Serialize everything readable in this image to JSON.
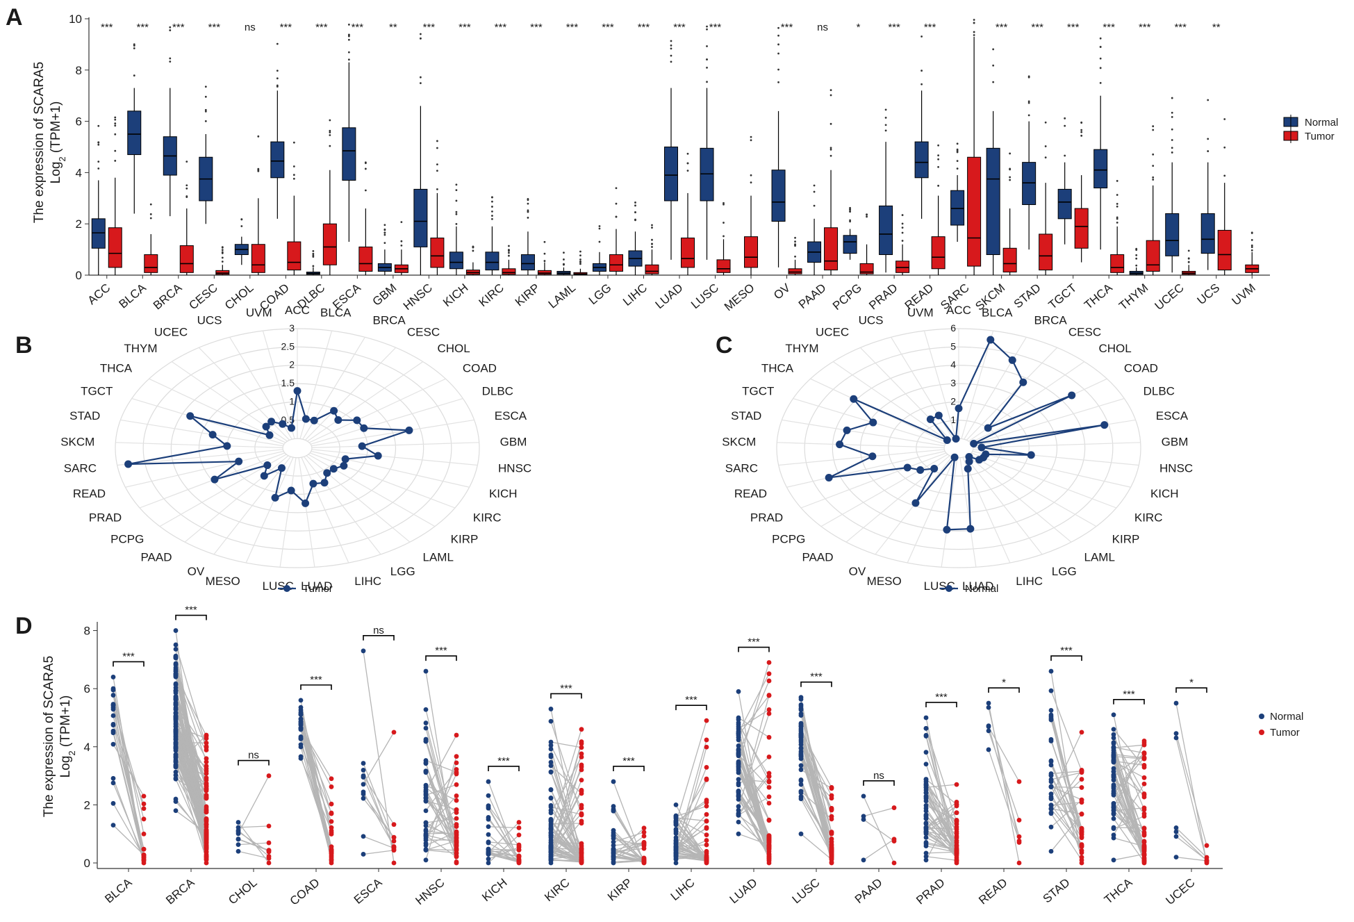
{
  "panel_labels": {
    "a": "A",
    "b": "B",
    "c": "C",
    "d": "D"
  },
  "colors": {
    "normal": "#1c3f7a",
    "tumor": "#d7191c",
    "pair_line": "#b5b5b5",
    "axis": "#333333"
  },
  "chart_data": [
    {
      "type": "box",
      "panel": "A",
      "ylabel_line1": "The expression of SCARA5",
      "ylabel_line2_base": "Log",
      "ylabel_line2_sub": "2",
      "ylabel_line2_rest": " (TPM+1)",
      "ylim": [
        0,
        10
      ],
      "yticks": [
        0,
        2,
        4,
        6,
        8,
        10
      ],
      "legend": {
        "position": "right",
        "items": [
          "Normal",
          "Tumor"
        ]
      },
      "groups": [
        {
          "cat": "ACC",
          "sig": "***",
          "normal": [
            0,
            1.05,
            1.65,
            2.2,
            3.7
          ],
          "tumor": [
            0,
            0.3,
            0.85,
            1.85,
            3.8
          ]
        },
        {
          "cat": "BLCA",
          "sig": "***",
          "normal": [
            2.4,
            4.7,
            5.5,
            6.4,
            7.3
          ],
          "tumor": [
            0,
            0.1,
            0.3,
            0.8,
            1.6
          ]
        },
        {
          "cat": "BRCA",
          "sig": "***",
          "normal": [
            2.3,
            3.9,
            4.65,
            5.4,
            7.3
          ],
          "tumor": [
            0,
            0.1,
            0.45,
            1.15,
            2.6
          ]
        },
        {
          "cat": "CESC",
          "sig": "***",
          "normal": [
            2.0,
            2.9,
            3.75,
            4.6,
            5.5
          ],
          "tumor": [
            0,
            0.03,
            0.08,
            0.18,
            0.4
          ]
        },
        {
          "cat": "CHOL",
          "sig": "ns",
          "normal": [
            0.4,
            0.8,
            1.0,
            1.2,
            1.5
          ],
          "tumor": [
            0,
            0.1,
            0.4,
            1.2,
            3.0
          ]
        },
        {
          "cat": "COAD",
          "sig": "***",
          "normal": [
            2.2,
            3.8,
            4.45,
            5.2,
            7.2
          ],
          "tumor": [
            0,
            0.2,
            0.5,
            1.3,
            3.1
          ]
        },
        {
          "cat": "DLBC",
          "sig": "***",
          "normal": [
            0,
            0.03,
            0.07,
            0.12,
            0.3
          ],
          "tumor": [
            0,
            0.4,
            1.1,
            2.0,
            4.1
          ]
        },
        {
          "cat": "ESCA",
          "sig": "***",
          "normal": [
            1.3,
            3.7,
            4.85,
            5.75,
            8.3
          ],
          "tumor": [
            0,
            0.15,
            0.45,
            1.1,
            2.6
          ]
        },
        {
          "cat": "GBM",
          "sig": "**",
          "normal": [
            0,
            0.15,
            0.3,
            0.45,
            1.0
          ],
          "tumor": [
            0,
            0.1,
            0.25,
            0.4,
            1.0
          ]
        },
        {
          "cat": "HNSC",
          "sig": "***",
          "normal": [
            0,
            1.1,
            2.1,
            3.35,
            6.6
          ],
          "tumor": [
            0,
            0.3,
            0.75,
            1.45,
            3.2
          ]
        },
        {
          "cat": "KICH",
          "sig": "***",
          "normal": [
            0,
            0.25,
            0.5,
            0.9,
            1.9
          ],
          "tumor": [
            0,
            0.03,
            0.1,
            0.2,
            0.5
          ]
        },
        {
          "cat": "KIRC",
          "sig": "***",
          "normal": [
            0,
            0.2,
            0.5,
            0.9,
            1.9
          ],
          "tumor": [
            0,
            0.03,
            0.1,
            0.25,
            0.6
          ]
        },
        {
          "cat": "KIRP",
          "sig": "***",
          "normal": [
            0,
            0.2,
            0.45,
            0.8,
            1.7
          ],
          "tumor": [
            0,
            0.03,
            0.08,
            0.18,
            0.5
          ]
        },
        {
          "cat": "LAML",
          "sig": "***",
          "normal": [
            0,
            0.03,
            0.08,
            0.15,
            0.3
          ],
          "tumor": [
            0,
            0.02,
            0.05,
            0.1,
            0.25
          ]
        },
        {
          "cat": "LGG",
          "sig": "***",
          "normal": [
            0,
            0.15,
            0.3,
            0.45,
            0.9
          ],
          "tumor": [
            0,
            0.15,
            0.4,
            0.8,
            1.8
          ]
        },
        {
          "cat": "LIHC",
          "sig": "***",
          "normal": [
            0,
            0.35,
            0.65,
            0.95,
            1.7
          ],
          "tumor": [
            0,
            0.05,
            0.15,
            0.4,
            1.0
          ]
        },
        {
          "cat": "LUAD",
          "sig": "***",
          "normal": [
            0.6,
            2.9,
            3.9,
            5.0,
            7.3
          ],
          "tumor": [
            0,
            0.3,
            0.65,
            1.45,
            3.2
          ]
        },
        {
          "cat": "LUSC",
          "sig": "***",
          "normal": [
            0.6,
            2.9,
            3.95,
            4.95,
            7.3
          ],
          "tumor": [
            0,
            0.1,
            0.25,
            0.6,
            1.4
          ]
        },
        {
          "cat": "MESO",
          "sig": "",
          "normal": null,
          "tumor": [
            0,
            0.3,
            0.7,
            1.5,
            3.1
          ]
        },
        {
          "cat": "OV",
          "sig": "***",
          "normal": [
            0.3,
            2.1,
            2.85,
            4.1,
            6.4
          ],
          "tumor": [
            0,
            0.05,
            0.12,
            0.25,
            0.6
          ]
        },
        {
          "cat": "PAAD",
          "sig": "ns",
          "normal": [
            0,
            0.5,
            0.9,
            1.3,
            2.2
          ],
          "tumor": [
            0,
            0.2,
            0.55,
            1.85,
            4.1
          ]
        },
        {
          "cat": "PCPG",
          "sig": "*",
          "normal": [
            0.6,
            0.85,
            1.3,
            1.55,
            1.8
          ],
          "tumor": [
            0,
            0.05,
            0.12,
            0.45,
            1.2
          ]
        },
        {
          "cat": "PRAD",
          "sig": "***",
          "normal": [
            0.1,
            0.8,
            1.6,
            2.7,
            5.2
          ],
          "tumor": [
            0,
            0.1,
            0.3,
            0.55,
            1.2
          ]
        },
        {
          "cat": "READ",
          "sig": "***",
          "normal": [
            2.2,
            3.8,
            4.4,
            5.2,
            7.2
          ],
          "tumor": [
            0,
            0.25,
            0.7,
            1.5,
            3.1
          ]
        },
        {
          "cat": "SARC",
          "sig": "",
          "normal": [
            1.3,
            1.95,
            2.6,
            3.3,
            3.9
          ],
          "tumor": [
            0,
            0.35,
            1.45,
            4.6,
            9.3
          ]
        },
        {
          "cat": "SKCM",
          "sig": "***",
          "normal": [
            0,
            0.8,
            3.75,
            4.95,
            6.4
          ],
          "tumor": [
            0,
            0.12,
            0.45,
            1.05,
            2.6
          ]
        },
        {
          "cat": "STAD",
          "sig": "***",
          "normal": [
            1.0,
            2.75,
            3.6,
            4.4,
            6.0
          ],
          "tumor": [
            0,
            0.2,
            0.75,
            1.6,
            3.6
          ]
        },
        {
          "cat": "TGCT",
          "sig": "***",
          "normal": [
            1.2,
            2.2,
            2.85,
            3.35,
            4.4
          ],
          "tumor": [
            0.5,
            1.05,
            1.9,
            2.6,
            3.9
          ]
        },
        {
          "cat": "THCA",
          "sig": "***",
          "normal": [
            1.0,
            3.4,
            4.1,
            4.9,
            7.0
          ],
          "tumor": [
            0,
            0.1,
            0.3,
            0.8,
            1.9
          ]
        },
        {
          "cat": "THYM",
          "sig": "***",
          "normal": [
            0,
            0.03,
            0.08,
            0.15,
            0.3
          ],
          "tumor": [
            0,
            0.15,
            0.4,
            1.35,
            3.5
          ]
        },
        {
          "cat": "UCEC",
          "sig": "***",
          "normal": [
            0.1,
            0.75,
            1.35,
            2.4,
            4.4
          ],
          "tumor": [
            0,
            0.03,
            0.08,
            0.15,
            0.4
          ]
        },
        {
          "cat": "UCS",
          "sig": "**",
          "normal": [
            0.2,
            0.85,
            1.4,
            2.4,
            4.4
          ],
          "tumor": [
            0,
            0.2,
            0.8,
            1.75,
            3.6
          ]
        },
        {
          "cat": "UVM",
          "sig": "",
          "normal": null,
          "tumor": [
            0,
            0.1,
            0.25,
            0.4,
            0.9
          ]
        }
      ]
    },
    {
      "type": "radar",
      "panel": "B",
      "series_name": "Tumor",
      "rmax": 3,
      "ticks": [
        "0.5",
        "1",
        "1.5",
        "2",
        "2.5",
        "3"
      ],
      "categories": [
        "ACC",
        "BLCA",
        "BRCA",
        "CESC",
        "CHOL",
        "COAD",
        "DLBC",
        "ESCA",
        "GBM",
        "HNSC",
        "KICH",
        "KIRC",
        "KIRP",
        "LAML",
        "LGG",
        "LIHC",
        "LUAD",
        "LUSC",
        "MESO",
        "OV",
        "PAAD",
        "PCPG",
        "PRAD",
        "READ",
        "SARC",
        "SKCM",
        "STAD",
        "TGCT",
        "THCA",
        "THYM",
        "UCEC",
        "UCS",
        "UVM"
      ],
      "values": [
        1.3,
        0.55,
        0.55,
        0.95,
        0.8,
        1.05,
        1.05,
        1.8,
        0.9,
        1.2,
        0.65,
        0.7,
        0.6,
        0.6,
        0.8,
        0.75,
        1.25,
        0.9,
        1.15,
        0.35,
        0.7,
        0.45,
        1.45,
        0.85,
        2.8,
        1.0,
        1.3,
        1.85,
        0.35,
        0.55,
        0.6,
        0.45,
        0.3
      ]
    },
    {
      "type": "radar",
      "panel": "C",
      "series_name": "Normal",
      "rmax": 6,
      "ticks": [
        "1",
        "2",
        "3",
        "4",
        "5",
        "6"
      ],
      "categories": [
        "ACC",
        "BLCA",
        "BRCA",
        "CESC",
        "CHOL",
        "COAD",
        "DLBC",
        "ESCA",
        "GBM",
        "HNSC",
        "KICH",
        "KIRC",
        "KIRP",
        "LAML",
        "LGG",
        "LIHC",
        "LUAD",
        "LUSC",
        "MESO",
        "OV",
        "PAAD",
        "PCPG",
        "PRAD",
        "READ",
        "SARC",
        "SKCM",
        "STAD",
        "TGCT",
        "THCA",
        "THYM",
        "UCEC",
        "UCS",
        "UVM"
      ],
      "values": [
        1.65,
        5.5,
        4.65,
        3.75,
        1.0,
        4.45,
        0.07,
        4.85,
        0.3,
        2.1,
        0.5,
        0.5,
        0.45,
        0.08,
        0.3,
        0.65,
        3.9,
        3.95,
        0.0,
        2.85,
        0.9,
        1.3,
        1.6,
        4.4,
        2.6,
        3.75,
        3.6,
        2.85,
        4.1,
        0.08,
        1.35,
        1.4,
        0.0
      ]
    },
    {
      "type": "paired-scatter",
      "panel": "D",
      "ylabel_line1": "The expression of SCARA5",
      "ylabel_line2_base": "Log",
      "ylabel_line2_sub": "2",
      "ylabel_line2_rest": " (TPM+1)",
      "ylim": [
        0,
        8.3
      ],
      "yticks": [
        0,
        2,
        4,
        6,
        8
      ],
      "legend": {
        "position": "right",
        "items": [
          "Normal",
          "Tumor"
        ]
      },
      "groups": [
        {
          "cat": "BLCA",
          "sig": "***",
          "n": 19,
          "nmin": 1.3,
          "nmax": 6.4,
          "nmed": 5.4,
          "tmin": 0,
          "tmax": 2.3,
          "tmed": 0.3
        },
        {
          "cat": "BRCA",
          "sig": "***",
          "n": 110,
          "nmin": 1.8,
          "nmax": 8.0,
          "nmed": 4.7,
          "tmin": 0,
          "tmax": 4.4,
          "tmed": 1.1
        },
        {
          "cat": "CHOL",
          "sig": "ns",
          "n": 9,
          "nmin": 0.4,
          "nmax": 1.4,
          "nmed": 0.9,
          "tmin": 0,
          "tmax": 3.0,
          "tmed": 0.5
        },
        {
          "cat": "COAD",
          "sig": "***",
          "n": 26,
          "nmin": 3.6,
          "nmax": 5.6,
          "nmed": 4.6,
          "tmin": 0,
          "tmax": 2.9,
          "tmed": 0.5
        },
        {
          "cat": "ESCA",
          "sig": "ns",
          "n": 11,
          "nmin": 0.3,
          "nmax": 7.3,
          "nmed": 3.0,
          "tmin": 0,
          "tmax": 4.5,
          "tmed": 0.8
        },
        {
          "cat": "HNSC",
          "sig": "***",
          "n": 43,
          "nmin": 0.1,
          "nmax": 6.6,
          "nmed": 2.3,
          "tmin": 0,
          "tmax": 4.4,
          "tmed": 1.0
        },
        {
          "cat": "KICH",
          "sig": "***",
          "n": 24,
          "nmin": 0,
          "nmax": 2.8,
          "nmed": 0.5,
          "tmin": 0,
          "tmax": 1.4,
          "tmed": 0.1
        },
        {
          "cat": "KIRC",
          "sig": "***",
          "n": 72,
          "nmin": 0,
          "nmax": 5.3,
          "nmed": 0.6,
          "tmin": 0,
          "tmax": 4.6,
          "tmed": 0.1
        },
        {
          "cat": "KIRP",
          "sig": "***",
          "n": 32,
          "nmin": 0,
          "nmax": 2.8,
          "nmed": 0.5,
          "tmin": 0,
          "tmax": 1.2,
          "tmed": 0.1
        },
        {
          "cat": "LIHC",
          "sig": "***",
          "n": 50,
          "nmin": 0,
          "nmax": 2.0,
          "nmed": 0.6,
          "tmin": 0,
          "tmax": 4.9,
          "tmed": 0.2
        },
        {
          "cat": "LUAD",
          "sig": "***",
          "n": 57,
          "nmin": 1.0,
          "nmax": 5.9,
          "nmed": 3.4,
          "tmin": 0,
          "tmax": 6.9,
          "tmed": 0.9
        },
        {
          "cat": "LUSC",
          "sig": "***",
          "n": 49,
          "nmin": 1.0,
          "nmax": 5.7,
          "nmed": 4.0,
          "tmin": 0,
          "tmax": 2.6,
          "tmed": 0.5
        },
        {
          "cat": "PAAD",
          "sig": "ns",
          "n": 4,
          "nmin": 0.1,
          "nmax": 2.3,
          "nmed": 1.3,
          "tmin": 0,
          "tmax": 1.9,
          "tmed": 0.6
        },
        {
          "cat": "PRAD",
          "sig": "***",
          "n": 50,
          "nmin": 0.1,
          "nmax": 5.0,
          "nmed": 1.4,
          "tmin": 0,
          "tmax": 2.7,
          "tmed": 0.5
        },
        {
          "cat": "READ",
          "sig": "*",
          "n": 6,
          "nmin": 3.9,
          "nmax": 5.5,
          "nmed": 5.0,
          "tmin": 0,
          "tmax": 2.8,
          "tmed": 0.9
        },
        {
          "cat": "STAD",
          "sig": "***",
          "n": 32,
          "nmin": 0.4,
          "nmax": 6.6,
          "nmed": 3.2,
          "tmin": 0,
          "tmax": 4.5,
          "tmed": 1.3
        },
        {
          "cat": "THCA",
          "sig": "***",
          "n": 58,
          "nmin": 0.1,
          "nmax": 5.1,
          "nmed": 3.2,
          "tmin": 0,
          "tmax": 4.2,
          "tmed": 0.6
        },
        {
          "cat": "UCEC",
          "sig": "*",
          "n": 7,
          "nmin": 0.2,
          "nmax": 5.5,
          "nmed": 1.2,
          "tmin": 0,
          "tmax": 0.6,
          "tmed": 0.1
        }
      ]
    }
  ]
}
